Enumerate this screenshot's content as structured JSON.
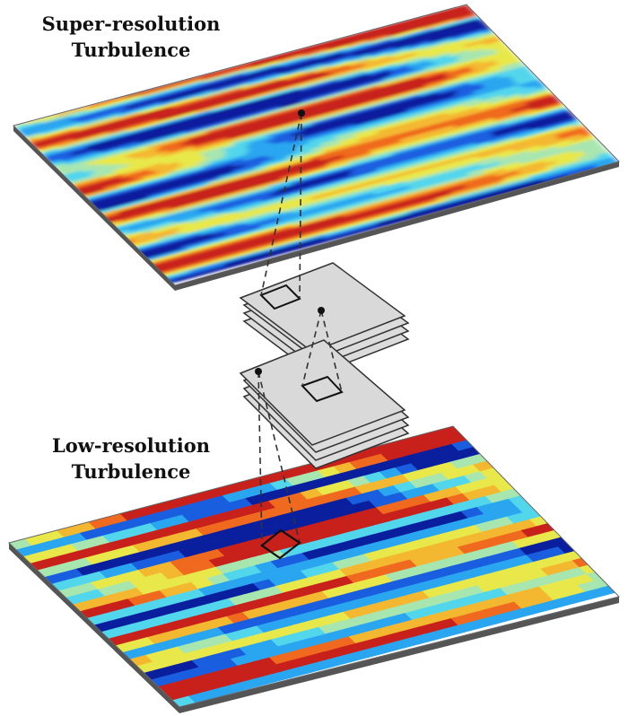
{
  "labels": {
    "high_res_line1": "Super-resolution",
    "high_res_line2": "Turbulence",
    "low_res_line1": "Low-resolution",
    "low_res_line2": "Turbulence"
  },
  "colormap": [
    "#0a1f9e",
    "#1a5ee0",
    "#2aa6f0",
    "#52d6ec",
    "#a8e6b0",
    "#e8e84a",
    "#f4b830",
    "#ef6a1e",
    "#c8201a"
  ],
  "colors": {
    "plane_edge": "#555555",
    "layer_fill": "#dcdcdc",
    "layer_edge": "#333333",
    "connector": "#333333"
  }
}
